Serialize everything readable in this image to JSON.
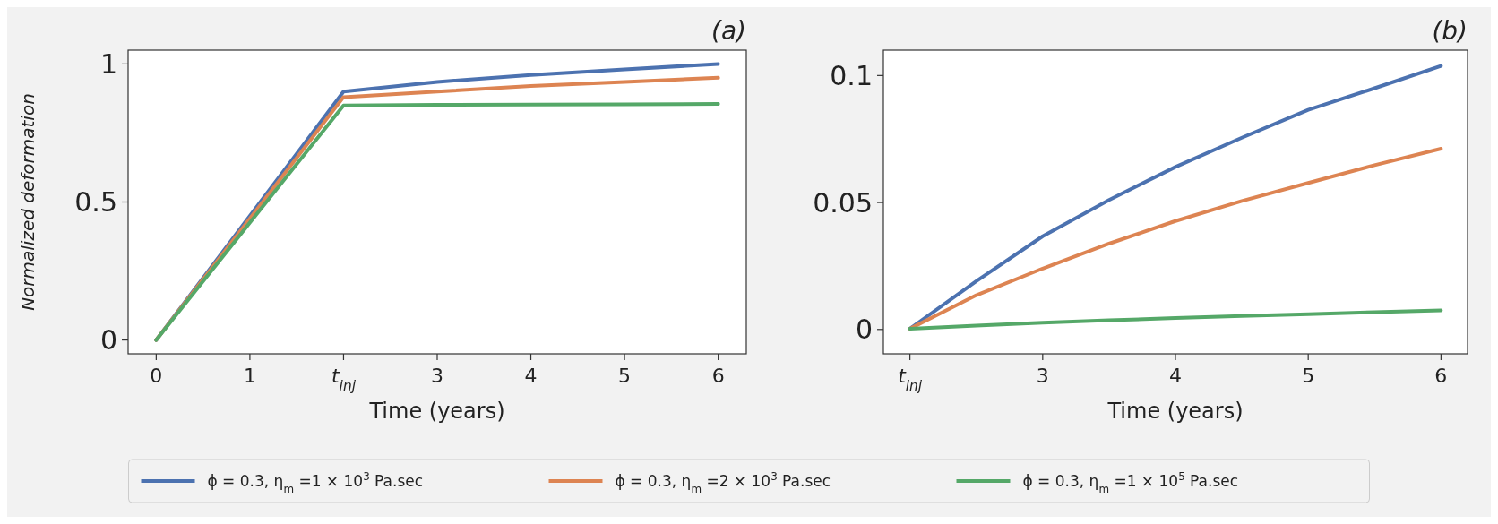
{
  "chart_data": [
    {
      "type": "line",
      "title": "(a)",
      "xlabel": "Time (years)",
      "ylabel": "Normalized deformation",
      "xlim": [
        -0.3,
        6.3
      ],
      "ylim": [
        -0.05,
        1.05
      ],
      "xticks": [
        0,
        1,
        {
          "value": 2,
          "label": "t$_{inj}$"
        },
        3,
        4,
        5,
        6
      ],
      "yticks": [
        0,
        0.5,
        1
      ],
      "grid": false,
      "legend": "bottom",
      "line_style": "solid",
      "marker": "none",
      "x": [
        0,
        1,
        2,
        3,
        4,
        5,
        6
      ],
      "series": [
        {
          "name": "ϕ = 0.3, η$_{m}$ =1 × 10$^{3}$ Pa.sec",
          "color": "#4c72b0",
          "values": [
            0,
            0.45,
            0.9,
            0.935,
            0.96,
            0.98,
            1.0
          ]
        },
        {
          "name": "ϕ = 0.3, η$_{m}$ =2 × 10$^{3}$ Pa.sec",
          "color": "#dd8452",
          "values": [
            0,
            0.44,
            0.88,
            0.9,
            0.92,
            0.935,
            0.95
          ]
        },
        {
          "name": "ϕ = 0.3, η$_{m}$ =1 × 10$^{5}$ Pa.sec",
          "color": "#55a868",
          "values": [
            0,
            0.425,
            0.85,
            0.852,
            0.853,
            0.854,
            0.855
          ]
        }
      ]
    },
    {
      "type": "line",
      "title": "(b)",
      "xlabel": "Time (years)",
      "xlim": [
        1.8,
        6.2
      ],
      "ylim": [
        -0.0096,
        0.11
      ],
      "xticks": [
        {
          "value": 2,
          "label": "t$_{inj}$"
        },
        3,
        4,
        5,
        6
      ],
      "yticks": [
        0,
        0.05,
        0.1
      ],
      "grid": false,
      "line_style": "solid",
      "marker": "none",
      "x": [
        2,
        2.5,
        3,
        3.5,
        4,
        4.5,
        5,
        5.5,
        6
      ],
      "series": [
        {
          "color": "#4c72b0",
          "values": [
            0.0003,
            0.019,
            0.0367,
            0.051,
            0.064,
            0.0755,
            0.0865,
            0.095,
            0.1038
          ]
        },
        {
          "color": "#dd8452",
          "values": [
            0.0003,
            0.0135,
            0.024,
            0.0338,
            0.0427,
            0.0506,
            0.0577,
            0.0647,
            0.0712
          ]
        },
        {
          "color": "#55a868",
          "values": [
            0.0003,
            0.0015,
            0.0027,
            0.0036,
            0.0045,
            0.0053,
            0.006,
            0.0068,
            0.0075
          ]
        }
      ]
    }
  ]
}
